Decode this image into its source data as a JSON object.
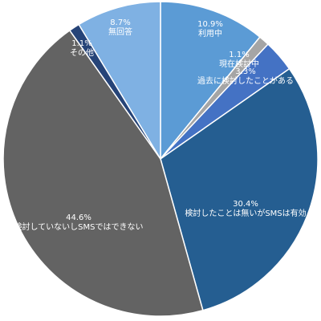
{
  "chart_data": {
    "type": "pie",
    "title": "",
    "legend": "none",
    "start_angle_deg": 0,
    "direction": "clockwise",
    "slices": [
      {
        "label": "利用中",
        "value_label": "10.9%",
        "value": 10.9,
        "color": "#5B9BD5",
        "text_color": "#ffffff"
      },
      {
        "label": "現在検討中",
        "value_label": "1.1%",
        "value": 1.1,
        "color": "#A5A5A5",
        "text_color": "#ffffff"
      },
      {
        "label": "過去に検討したことがある",
        "value_label": "3.3%",
        "value": 3.3,
        "color": "#4472C4",
        "text_color": "#ffffff"
      },
      {
        "label": "検討したことは無いがSMSは有効",
        "value_label": "30.4%",
        "value": 30.4,
        "color": "#255E91",
        "text_color": "#ffffff"
      },
      {
        "label": "検討していないしSMSではできない",
        "value_label": "44.6%",
        "value": 44.6,
        "color": "#636363",
        "text_color": "#ffffff"
      },
      {
        "label": "その他",
        "value_label": "1.1%",
        "value": 1.1,
        "color": "#264478",
        "text_color": "#ffffff"
      },
      {
        "label": "無回答",
        "value_label": "8.7%",
        "value": 8.7,
        "color": "#7FB1E3",
        "text_color": "#ffffff"
      }
    ]
  }
}
